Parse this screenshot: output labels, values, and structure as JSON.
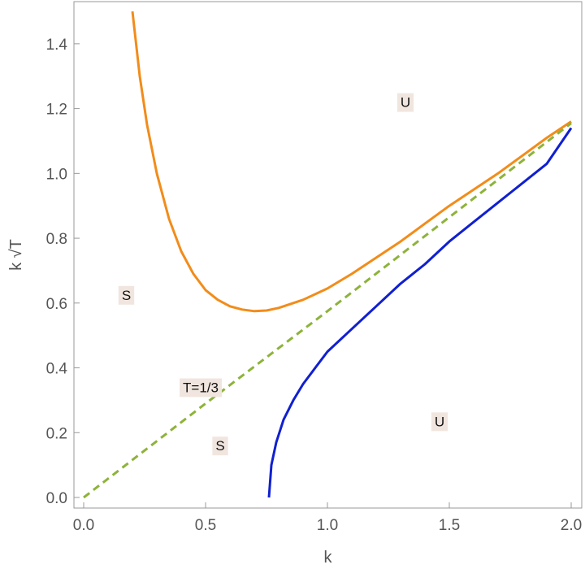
{
  "chart_data": {
    "type": "line",
    "xlabel": "k",
    "ylabel": "k √T",
    "xlim": [
      0.0,
      2.0
    ],
    "ylim": [
      0.0,
      1.5
    ],
    "x_ticks": [
      "0.0",
      "0.5",
      "1.0",
      "1.5",
      "2.0"
    ],
    "y_ticks": [
      "0.0",
      "0.2",
      "0.4",
      "0.6",
      "0.8",
      "1.0",
      "1.2",
      "1.4"
    ],
    "grid": false,
    "frame": true,
    "series": [
      {
        "color": "#f28c1a",
        "style": "solid",
        "x": [
          0.2,
          0.23,
          0.26,
          0.3,
          0.35,
          0.4,
          0.45,
          0.5,
          0.55,
          0.6,
          0.65,
          0.7,
          0.75,
          0.8,
          0.9,
          1.0,
          1.1,
          1.2,
          1.3,
          1.4,
          1.5,
          1.6,
          1.7,
          1.8,
          1.9,
          2.0
        ],
        "y": [
          1.5,
          1.3,
          1.15,
          1.0,
          0.86,
          0.76,
          0.69,
          0.64,
          0.61,
          0.59,
          0.58,
          0.575,
          0.577,
          0.585,
          0.61,
          0.645,
          0.69,
          0.74,
          0.79,
          0.845,
          0.9,
          0.95,
          1.0,
          1.055,
          1.11,
          1.16
        ]
      },
      {
        "color": "#1020d0",
        "style": "solid",
        "x": [
          0.76,
          0.77,
          0.79,
          0.82,
          0.86,
          0.9,
          0.95,
          1.0,
          1.1,
          1.2,
          1.3,
          1.4,
          1.5,
          1.6,
          1.7,
          1.8,
          1.9,
          2.0
        ],
        "y": [
          0.0,
          0.1,
          0.17,
          0.24,
          0.3,
          0.35,
          0.4,
          0.45,
          0.52,
          0.59,
          0.66,
          0.72,
          0.79,
          0.85,
          0.91,
          0.97,
          1.03,
          1.14
        ]
      },
      {
        "color": "#8db33a",
        "style": "dashed",
        "x": [
          0.0,
          0.5,
          1.0,
          1.5,
          2.0
        ],
        "y": [
          0.0,
          0.29,
          0.575,
          0.865,
          1.155
        ]
      }
    ],
    "annotations": [
      {
        "text": "U",
        "x": 1.32,
        "y": 1.22
      },
      {
        "text": "S",
        "x": 0.175,
        "y": 0.625
      },
      {
        "text": "T=1/3",
        "x": 0.48,
        "y": 0.34
      },
      {
        "text": "S",
        "x": 0.56,
        "y": 0.16
      },
      {
        "text": "U",
        "x": 1.46,
        "y": 0.235
      }
    ]
  }
}
